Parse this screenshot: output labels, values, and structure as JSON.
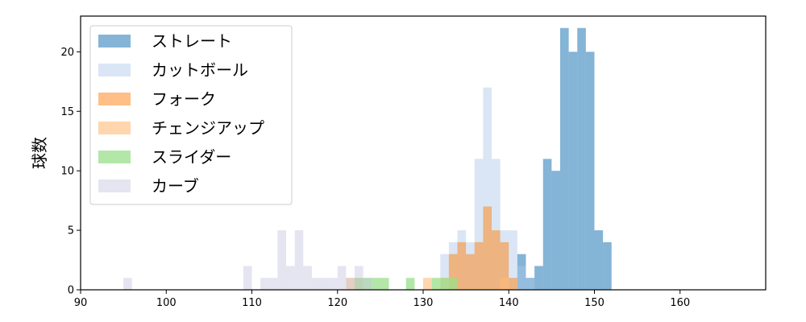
{
  "chart_data": {
    "type": "histogram",
    "xlabel": "",
    "ylabel": "球数",
    "xlim": [
      90,
      170
    ],
    "ylim": [
      0,
      23
    ],
    "xticks": [
      90,
      100,
      110,
      120,
      130,
      140,
      150,
      160
    ],
    "yticks": [
      0,
      5,
      10,
      15,
      20
    ],
    "bin_width": 1,
    "legend_position": "upper-left",
    "series": [
      {
        "name": "ストレート",
        "color": "#1f77b4",
        "opacity": 0.55,
        "bins": [
          [
            141,
            3
          ],
          [
            142,
            1
          ],
          [
            143,
            2
          ],
          [
            144,
            11
          ],
          [
            145,
            10
          ],
          [
            146,
            22
          ],
          [
            147,
            20
          ],
          [
            148,
            22
          ],
          [
            149,
            20
          ],
          [
            150,
            5
          ],
          [
            151,
            4
          ]
        ]
      },
      {
        "name": "カットボール",
        "color": "#aec7e8",
        "opacity": 0.45,
        "bins": [
          [
            132,
            3
          ],
          [
            133,
            4
          ],
          [
            134,
            5
          ],
          [
            135,
            4
          ],
          [
            136,
            11
          ],
          [
            137,
            17
          ],
          [
            138,
            11
          ],
          [
            139,
            5
          ],
          [
            140,
            5
          ],
          [
            141,
            2
          ],
          [
            142,
            1
          ]
        ]
      },
      {
        "name": "フォーク",
        "color": "#ff7f0e",
        "opacity": 0.5,
        "bins": [
          [
            133,
            3
          ],
          [
            134,
            4
          ],
          [
            135,
            3
          ],
          [
            136,
            4
          ],
          [
            137,
            7
          ],
          [
            138,
            5
          ],
          [
            139,
            4
          ],
          [
            140,
            1
          ]
        ]
      },
      {
        "name": "チェンジアップ",
        "color": "#ffbb78",
        "opacity": 0.6,
        "bins": [
          [
            121,
            1
          ],
          [
            122,
            1
          ],
          [
            130,
            1
          ],
          [
            132,
            1
          ],
          [
            133,
            1
          ],
          [
            139,
            1
          ]
        ]
      },
      {
        "name": "スライダー",
        "color": "#98df8a",
        "opacity": 0.75,
        "bins": [
          [
            122,
            1
          ],
          [
            123,
            1
          ],
          [
            124,
            1
          ],
          [
            125,
            1
          ],
          [
            128,
            1
          ],
          [
            131,
            1
          ],
          [
            132,
            1
          ],
          [
            133,
            1
          ]
        ]
      },
      {
        "name": "カーブ",
        "color": "#c5c5e0",
        "opacity": 0.45,
        "bins": [
          [
            95,
            1
          ],
          [
            109,
            2
          ],
          [
            111,
            1
          ],
          [
            112,
            1
          ],
          [
            113,
            5
          ],
          [
            114,
            2
          ],
          [
            115,
            5
          ],
          [
            116,
            2
          ],
          [
            117,
            1
          ],
          [
            118,
            1
          ],
          [
            119,
            1
          ],
          [
            120,
            2
          ],
          [
            121,
            1
          ],
          [
            122,
            2
          ],
          [
            123,
            1
          ]
        ]
      }
    ]
  }
}
